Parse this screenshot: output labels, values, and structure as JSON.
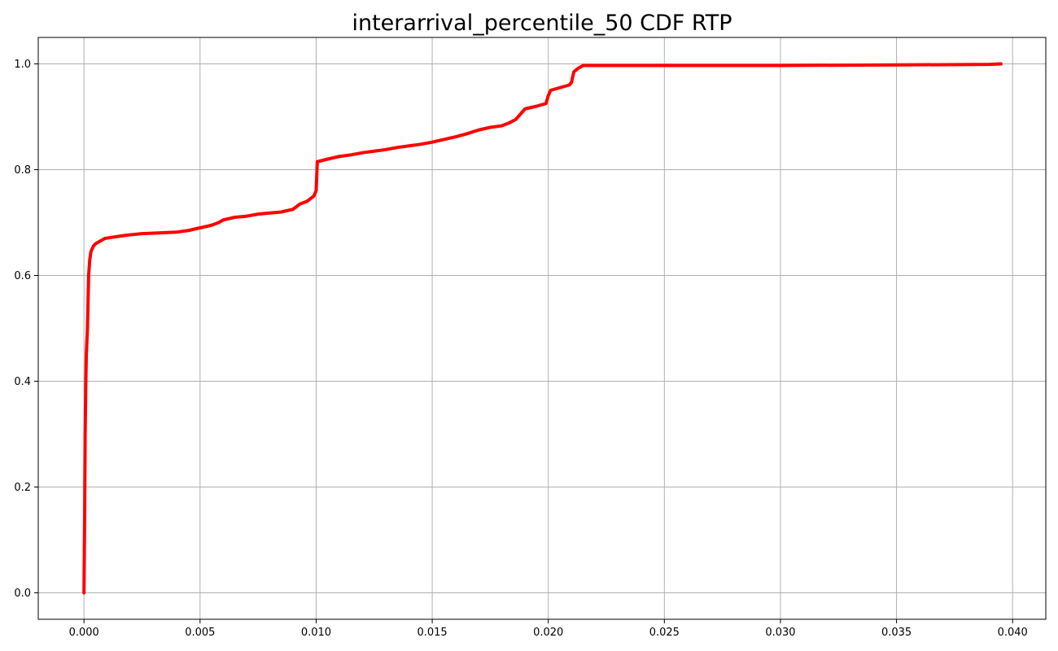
{
  "chart_data": {
    "type": "line",
    "title": "interarrival_percentile_50 CDF RTP",
    "xlabel": "",
    "ylabel": "",
    "xlim": [
      -0.00197,
      0.04143
    ],
    "ylim": [
      -0.05,
      1.05
    ],
    "xticks": [
      0.0,
      0.005,
      0.01,
      0.015,
      0.02,
      0.025,
      0.03,
      0.035,
      0.04
    ],
    "xtick_labels": [
      "0.000",
      "0.005",
      "0.010",
      "0.015",
      "0.020",
      "0.025",
      "0.030",
      "0.035",
      "0.040"
    ],
    "yticks": [
      0.0,
      0.2,
      0.4,
      0.6,
      0.8,
      1.0
    ],
    "ytick_labels": [
      "0.0",
      "0.2",
      "0.4",
      "0.6",
      "0.8",
      "1.0"
    ],
    "grid": true,
    "legend": "none",
    "series": [
      {
        "color": "#ff0000",
        "x": [
          0.0,
          3e-05,
          5e-05,
          8e-05,
          0.0001,
          0.00015,
          0.0002,
          0.00025,
          0.0003,
          0.00035,
          0.0004,
          0.0005,
          0.0007,
          0.0009,
          0.0012,
          0.0015,
          0.002,
          0.0025,
          0.003,
          0.0035,
          0.004,
          0.0045,
          0.005,
          0.0055,
          0.0058,
          0.006,
          0.0065,
          0.007,
          0.0075,
          0.008,
          0.0085,
          0.009,
          0.0093,
          0.0096,
          0.0099,
          0.01,
          0.01005,
          0.0105,
          0.011,
          0.0115,
          0.012,
          0.0125,
          0.013,
          0.0135,
          0.014,
          0.0145,
          0.015,
          0.0155,
          0.016,
          0.0165,
          0.017,
          0.0175,
          0.018,
          0.0183,
          0.0186,
          0.0188,
          0.019,
          0.0195,
          0.0199,
          0.02,
          0.0201,
          0.0205,
          0.0209,
          0.021,
          0.0211,
          0.0213,
          0.0215,
          0.025,
          0.03,
          0.035,
          0.039,
          0.0395
        ],
        "y": [
          0.0,
          0.15,
          0.3,
          0.4,
          0.45,
          0.5,
          0.6,
          0.63,
          0.645,
          0.65,
          0.655,
          0.66,
          0.665,
          0.67,
          0.672,
          0.674,
          0.677,
          0.679,
          0.68,
          0.681,
          0.682,
          0.685,
          0.69,
          0.695,
          0.7,
          0.705,
          0.71,
          0.712,
          0.716,
          0.718,
          0.72,
          0.725,
          0.735,
          0.74,
          0.75,
          0.76,
          0.815,
          0.82,
          0.825,
          0.828,
          0.832,
          0.835,
          0.838,
          0.842,
          0.845,
          0.848,
          0.852,
          0.857,
          0.862,
          0.868,
          0.875,
          0.88,
          0.883,
          0.888,
          0.895,
          0.905,
          0.915,
          0.92,
          0.925,
          0.94,
          0.95,
          0.955,
          0.96,
          0.965,
          0.985,
          0.992,
          0.997,
          0.997,
          0.997,
          0.998,
          0.999,
          1.0
        ]
      }
    ]
  }
}
